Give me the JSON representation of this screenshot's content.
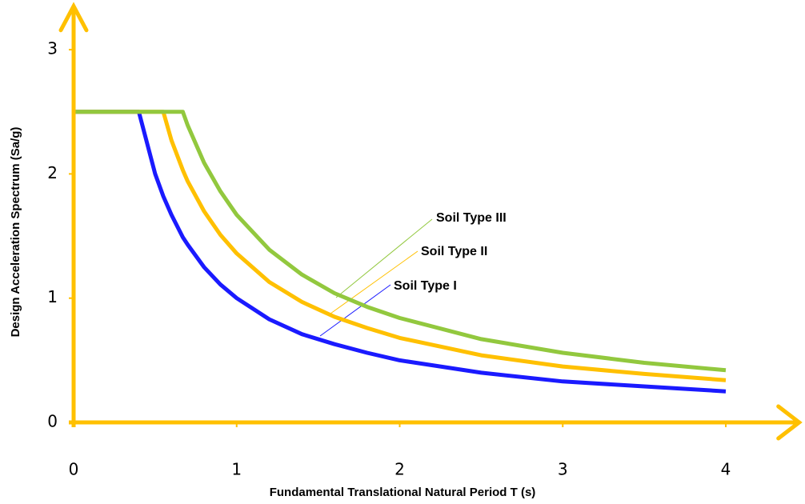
{
  "chart_data": {
    "type": "line",
    "x_label": "Fundamental Translational Natural Period T (s)",
    "y_label": "Design Acceleration Spectrum (Sa/g)",
    "x": [
      0,
      0.4,
      0.5,
      0.55,
      0.6,
      0.67,
      0.7,
      0.8,
      0.9,
      1,
      1.2,
      1.4,
      1.6,
      1.8,
      2,
      2.5,
      3,
      3.5,
      4
    ],
    "series": [
      {
        "name": "Soil Type I",
        "color": "#1a1aff",
        "values": [
          2.5,
          2.5,
          2.0,
          1.82,
          1.67,
          1.49,
          1.43,
          1.25,
          1.11,
          1.0,
          0.83,
          0.71,
          0.63,
          0.56,
          0.5,
          0.4,
          0.33,
          0.29,
          0.25
        ]
      },
      {
        "name": "Soil Type II",
        "color": "#ffc000",
        "values": [
          2.5,
          2.5,
          2.5,
          2.5,
          2.27,
          2.03,
          1.94,
          1.7,
          1.51,
          1.36,
          1.13,
          0.97,
          0.85,
          0.76,
          0.68,
          0.54,
          0.45,
          0.39,
          0.34
        ]
      },
      {
        "name": "Soil Type III",
        "color": "#92c83e",
        "values": [
          2.5,
          2.5,
          2.5,
          2.5,
          2.5,
          2.5,
          2.39,
          2.09,
          1.86,
          1.67,
          1.39,
          1.19,
          1.04,
          0.93,
          0.84,
          0.67,
          0.56,
          0.48,
          0.42
        ]
      }
    ],
    "xlim": [
      0,
      4.45
    ],
    "ylim": [
      0,
      3.35
    ],
    "xticks": [
      0,
      1,
      2,
      3,
      4
    ],
    "yticks": [
      0,
      1,
      2,
      3
    ],
    "axis_color": "#ffc000",
    "grid": false
  }
}
